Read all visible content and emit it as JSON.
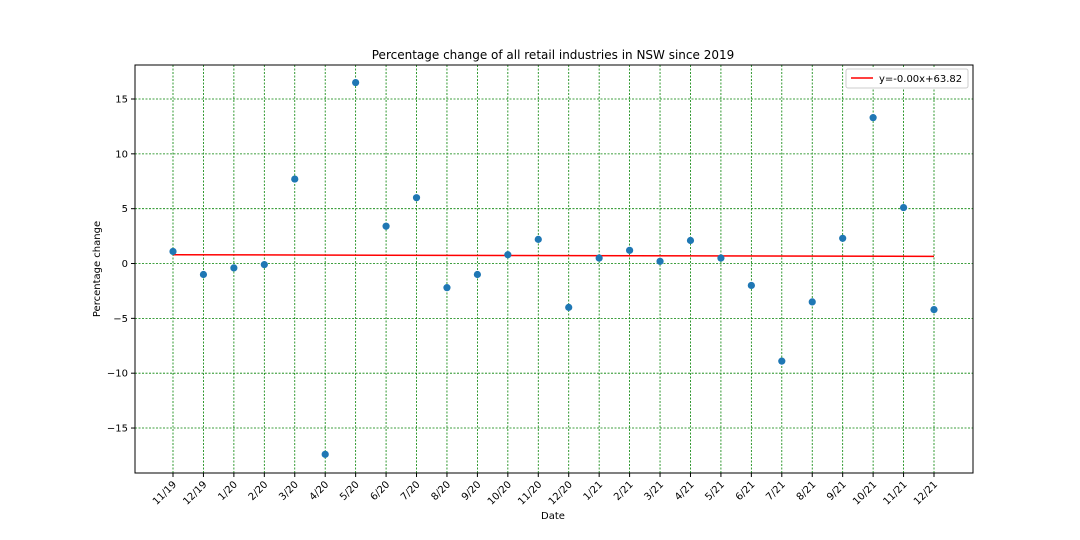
{
  "chart_data": {
    "type": "scatter",
    "title": "Percentage change of all retail industries in NSW since 2019",
    "xlabel": "Date",
    "ylabel": "Percentage change",
    "categories": [
      "11/19",
      "12/19",
      "1/20",
      "2/20",
      "3/20",
      "4/20",
      "5/20",
      "6/20",
      "7/20",
      "8/20",
      "9/20",
      "10/20",
      "11/20",
      "12/20",
      "1/21",
      "2/21",
      "3/21",
      "4/21",
      "5/21",
      "6/21",
      "7/21",
      "8/21",
      "9/21",
      "10/21",
      "11/21",
      "12/21"
    ],
    "values": [
      1.1,
      -1.0,
      -0.4,
      -0.1,
      7.7,
      -17.4,
      16.5,
      3.4,
      6.0,
      -2.2,
      -1.0,
      0.8,
      2.2,
      -4.0,
      0.5,
      1.2,
      0.2,
      2.1,
      0.5,
      -2.0,
      -8.9,
      -3.5,
      2.3,
      13.3,
      5.1,
      -4.2
    ],
    "ylim": [
      -19.1,
      18.1
    ],
    "yticks": [
      -15,
      -10,
      -5,
      0,
      5,
      10,
      15
    ],
    "grid": true,
    "trendline": {
      "label": "y=-0.00x+63.82",
      "start": 0.8,
      "end": 0.65
    },
    "legend_position": "top-right",
    "colors": {
      "points": "#1f77b4",
      "trendline": "#ff0000",
      "grid": "#008000"
    }
  }
}
